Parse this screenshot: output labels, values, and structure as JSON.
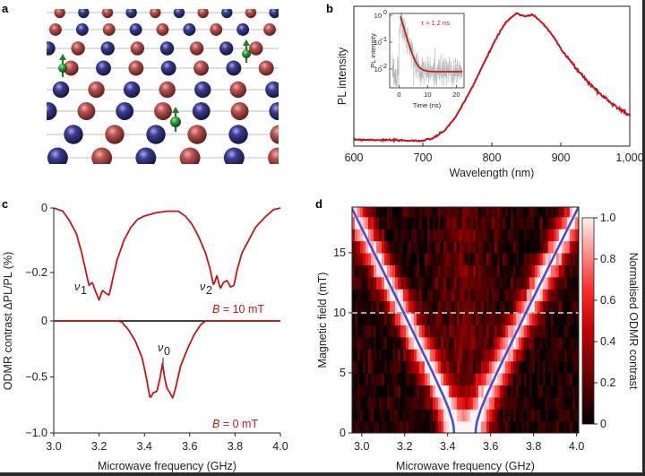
{
  "panel_labels": {
    "a": "a",
    "b": "b",
    "c": "c",
    "d": "d"
  },
  "panel_a": {
    "type": "crystal-lattice-illustration",
    "colors": {
      "atom_red": "#b04a48",
      "atom_blue": "#33338a",
      "defect_green": "#2e9a3a",
      "bond": "#cccccc"
    }
  },
  "chart_data": [
    {
      "id": "b",
      "type": "line",
      "xlabel": "Wavelength (nm)",
      "ylabel": "PL intensity",
      "xlim": [
        600,
        1000
      ],
      "xticks": [
        600,
        700,
        800,
        900,
        1000
      ],
      "xtick_labels": [
        "600",
        "700",
        "800",
        "900",
        "1,000"
      ],
      "grid": false,
      "color": "#c0161b",
      "x": [
        600,
        650,
        700,
        715,
        730,
        745,
        760,
        775,
        790,
        805,
        820,
        835,
        848,
        860,
        875,
        890,
        905,
        920,
        940,
        960,
        980,
        1000
      ],
      "y": [
        0.05,
        0.045,
        0.04,
        0.06,
        0.11,
        0.2,
        0.33,
        0.48,
        0.64,
        0.8,
        0.93,
        1.0,
        0.98,
        0.99,
        0.92,
        0.82,
        0.7,
        0.6,
        0.48,
        0.38,
        0.3,
        0.23
      ]
    },
    {
      "id": "b-inset",
      "type": "line",
      "xlabel": "Time (ns)",
      "ylabel": "PL intensity",
      "annotation": "τ ≈ 1.2 ns",
      "yscale": "log",
      "xlim": [
        -2.5,
        22.3
      ],
      "ylim": [
        0.002,
        1.2
      ],
      "xticks": [
        0,
        10,
        20
      ],
      "xtick_labels": [
        "0",
        "10",
        "20"
      ],
      "yticks": [
        1,
        0.1,
        0.01
      ],
      "ytick_labels": [
        [
          "10",
          "0"
        ],
        [
          "10",
          "−1"
        ],
        [
          "10",
          "−2"
        ]
      ],
      "fit": {
        "tau_ns": 1.2,
        "amplitude": 0.9,
        "t0_ns": 0.5,
        "offset": 0.008,
        "color": "#c0161b"
      },
      "raw_color": "#b8b8b8"
    },
    {
      "id": "c",
      "type": "line",
      "xlabel": "Microwave frequency (GHz)",
      "ylabel": "ODMR contrast ΔPL/PL (%)",
      "xlim": [
        3.0,
        4.0
      ],
      "xticks": [
        3.0,
        3.2,
        3.4,
        3.6,
        3.8,
        4.0
      ],
      "xtick_labels": [
        "3.0",
        "3.2",
        "3.4",
        "3.6",
        "3.8",
        "4.0"
      ],
      "yticks_top": [
        0,
        -0.2
      ],
      "yticks_top_labels": [
        "0",
        "−0.2"
      ],
      "yticks_bottom": [
        0,
        -0.5,
        -1.0
      ],
      "yticks_bottom_labels": [
        "0",
        "−0.5",
        "−1.0"
      ],
      "color": "#c0161b",
      "series": [
        {
          "name": "B = 10 mT",
          "label_var": "B",
          "label_rest": " = 10 mT",
          "x": [
            3.0,
            3.04,
            3.07,
            3.1,
            3.12,
            3.14,
            3.155,
            3.17,
            3.185,
            3.2,
            3.215,
            3.23,
            3.245,
            3.26,
            3.28,
            3.31,
            3.34,
            3.37,
            3.4,
            3.45,
            3.5,
            3.55,
            3.58,
            3.61,
            3.64,
            3.67,
            3.69,
            3.705,
            3.72,
            3.735,
            3.75,
            3.765,
            3.78,
            3.795,
            3.81,
            3.83,
            3.86,
            3.89,
            3.93,
            3.97,
            4.0
          ],
          "y": [
            0,
            -0.01,
            -0.04,
            -0.08,
            -0.13,
            -0.19,
            -0.24,
            -0.23,
            -0.26,
            -0.285,
            -0.255,
            -0.265,
            -0.27,
            -0.22,
            -0.16,
            -0.1,
            -0.06,
            -0.035,
            -0.025,
            -0.015,
            -0.01,
            -0.01,
            -0.025,
            -0.05,
            -0.09,
            -0.14,
            -0.19,
            -0.24,
            -0.21,
            -0.25,
            -0.23,
            -0.225,
            -0.245,
            -0.24,
            -0.19,
            -0.14,
            -0.1,
            -0.06,
            -0.03,
            -0.005,
            0
          ],
          "peak_labels": [
            {
              "var": "ν",
              "sub": "1"
            },
            {
              "var": "ν",
              "sub": "2"
            }
          ]
        },
        {
          "name": "B = 0 mT",
          "label_var": "B",
          "label_rest": " = 0 mT",
          "x": [
            3.0,
            3.28,
            3.3,
            3.33,
            3.36,
            3.39,
            3.41,
            3.425,
            3.44,
            3.455,
            3.47,
            3.48,
            3.49,
            3.5,
            3.515,
            3.525,
            3.54,
            3.56,
            3.59,
            3.62,
            3.65,
            3.67,
            4.0
          ],
          "y": [
            0,
            0,
            -0.01,
            -0.08,
            -0.18,
            -0.33,
            -0.52,
            -0.69,
            -0.64,
            -0.63,
            -0.5,
            -0.38,
            -0.52,
            -0.6,
            -0.65,
            -0.69,
            -0.58,
            -0.4,
            -0.25,
            -0.12,
            -0.03,
            0,
            0
          ],
          "peak_labels": [
            {
              "var": "ν",
              "sub": "0"
            }
          ]
        }
      ]
    },
    {
      "id": "d",
      "type": "heatmap",
      "xlabel": "Microwave frequency (GHz)",
      "ylabel": "Magnetic field (mT)",
      "colorbar_label": "Normalised ODMR contrast",
      "xlim": [
        2.955,
        4.01
      ],
      "ylim": [
        0,
        18.8
      ],
      "xticks": [
        3.0,
        3.2,
        3.4,
        3.6,
        3.8,
        4.0
      ],
      "xtick_labels": [
        "3.0",
        "3.2",
        "3.4",
        "3.6",
        "3.8",
        "4.0"
      ],
      "yticks": [
        0,
        5,
        10,
        15
      ],
      "ytick_labels": [
        "0",
        "5",
        "10",
        "15"
      ],
      "clim": [
        0,
        1
      ],
      "cticks": [
        0,
        0.2,
        0.4,
        0.6,
        0.8,
        1.0
      ],
      "ctick_labels": [
        "0",
        "0.2",
        "0.4",
        "0.6",
        "0.8",
        "1.0"
      ],
      "colormap": [
        "#000000",
        "#5a0000",
        "#c00000",
        "#ff2a2a",
        "#ff9a9a",
        "#fff2f2"
      ],
      "dashed_line_B": 10,
      "dashed_color": "#aaaaaa",
      "resonance_color": "#3a4fd8",
      "resonance_fit": {
        "B": [
          0,
          0.5,
          1,
          2,
          3,
          5,
          8,
          10,
          12,
          15,
          18.8
        ],
        "f_low": [
          3.43,
          3.428,
          3.423,
          3.405,
          3.382,
          3.331,
          3.25,
          3.196,
          3.14,
          3.057,
          2.951
        ],
        "f_high": [
          3.53,
          3.532,
          3.537,
          3.555,
          3.578,
          3.629,
          3.71,
          3.764,
          3.82,
          3.903,
          4.009
        ]
      }
    }
  ]
}
